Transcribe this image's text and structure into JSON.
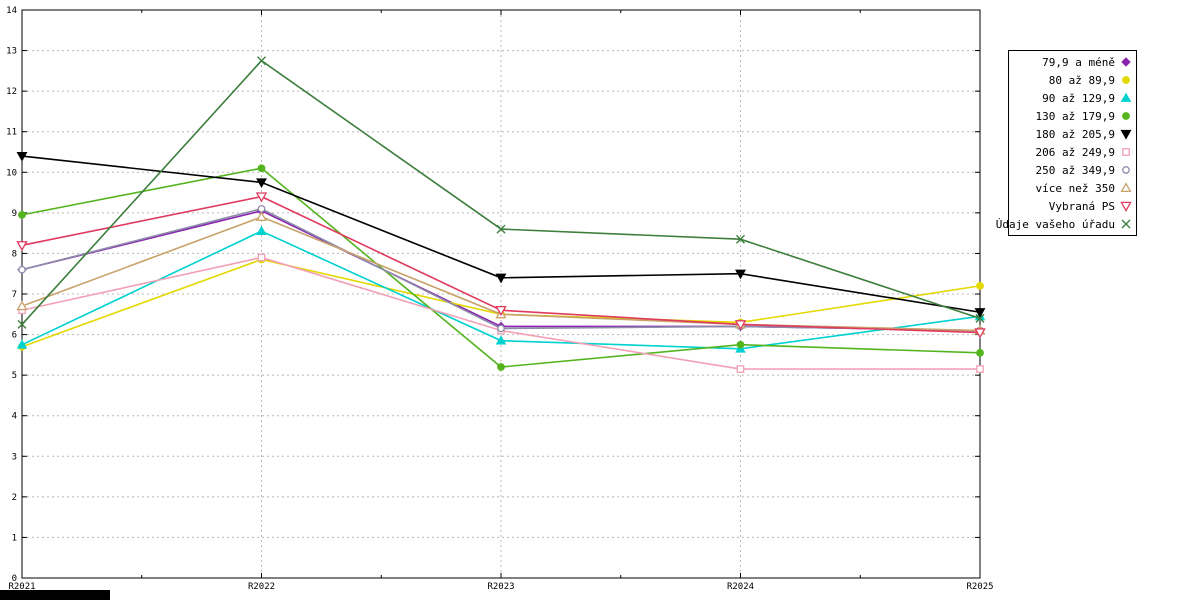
{
  "page": {
    "background": "#ffffff"
  },
  "chart_data": {
    "type": "line",
    "title": "",
    "xlabel": "",
    "ylabel": "",
    "x_categories": [
      "R2021",
      "R2022",
      "R2023",
      "R2024",
      "R2025"
    ],
    "ylim": [
      0,
      14
    ],
    "y_tick_step": 1,
    "y_ticks": [
      0,
      1,
      2,
      3,
      4,
      5,
      6,
      7,
      8,
      9,
      10,
      11,
      12,
      13,
      14
    ],
    "grid": {
      "horizontal": true,
      "vertical_major": true,
      "style": "dashed",
      "color": "#b8b8b8"
    },
    "legend_position": "top-right-outside",
    "series": [
      {
        "name": "79,9 a méně",
        "color": "#8b22b0",
        "marker": "diamond-filled",
        "values": [
          7.6,
          9.05,
          6.2,
          6.2,
          6.1
        ]
      },
      {
        "name": "80 až 89,9",
        "color": "#e3d800",
        "marker": "circle-filled",
        "values": [
          5.7,
          7.85,
          6.5,
          6.3,
          7.2
        ]
      },
      {
        "name": "90 až 129,9",
        "color": "#00d1d1",
        "marker": "triangle-up-filled",
        "values": [
          5.75,
          8.55,
          5.85,
          5.65,
          6.45
        ]
      },
      {
        "name": "130 až 179,9",
        "color": "#54b41e",
        "marker": "circle-filled",
        "values": [
          8.95,
          10.1,
          5.2,
          5.75,
          5.55
        ]
      },
      {
        "name": "180 až 205,9",
        "color": "#000000",
        "marker": "triangle-down-filled",
        "values": [
          10.4,
          9.75,
          7.4,
          7.5,
          6.55
        ]
      },
      {
        "name": "206 až 249,9",
        "color": "#f2a0b5",
        "marker": "square-open",
        "values": [
          6.6,
          7.9,
          6.1,
          5.15,
          5.15
        ]
      },
      {
        "name": "250 až 349,9",
        "color": "#8c8caa",
        "marker": "circle-open",
        "values": [
          7.6,
          9.1,
          6.15,
          6.2,
          6.1
        ]
      },
      {
        "name": "více než 350",
        "color": "#c8a26a",
        "marker": "triangle-up-open",
        "values": [
          6.7,
          8.9,
          6.5,
          6.25,
          6.1
        ]
      },
      {
        "name": "Vybraná PS",
        "color": "#e03a5e",
        "marker": "triangle-down-open",
        "values": [
          8.2,
          9.4,
          6.6,
          6.25,
          6.05
        ]
      },
      {
        "name": "Údaje vašeho úřadu",
        "color": "#3c7e3c",
        "marker": "x-cross",
        "values": [
          6.25,
          12.75,
          8.6,
          8.35,
          6.4
        ]
      }
    ]
  }
}
